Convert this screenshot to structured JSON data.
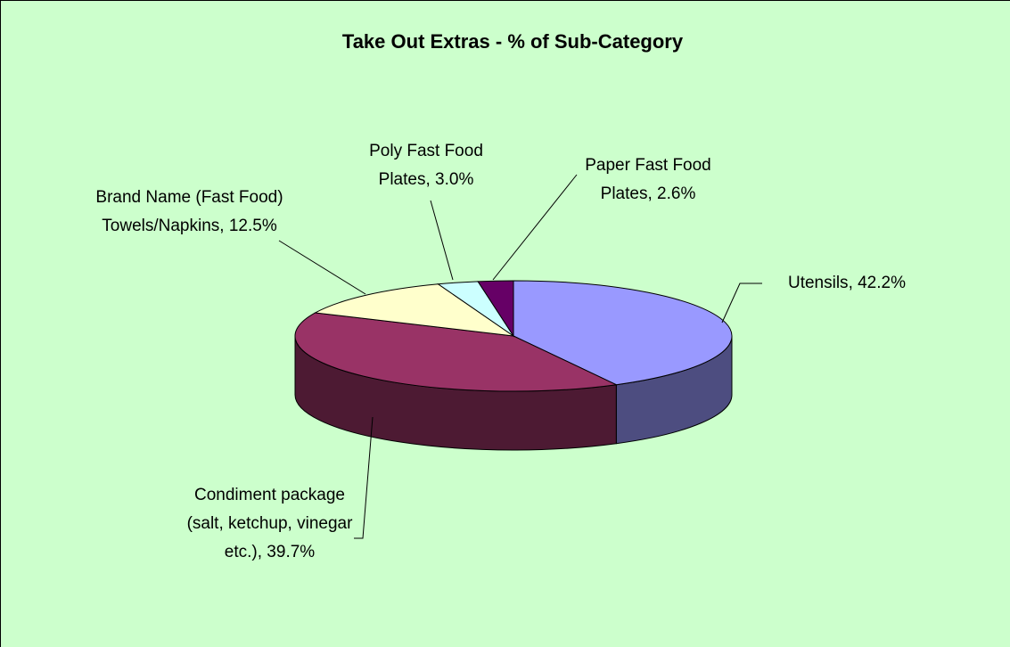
{
  "chart_data": {
    "type": "pie3d",
    "title": "Take Out Extras - % of Sub-Category",
    "categories": [
      "Utensils",
      "Condiment package (salt, ketchup, vinegar etc.)",
      "Brand Name  (Fast Food) Towels/Napkins",
      "Poly Fast Food Plates",
      "Paper Fast Food Plates"
    ],
    "values": [
      42.2,
      39.7,
      12.5,
      3.0,
      2.6
    ],
    "value_labels": [
      ", 42.2%",
      ", 39.7%",
      ", 12.5%",
      ", 3.0%",
      ", 2.6%"
    ],
    "colors": [
      "#9999ff",
      "#993366",
      "#ffffcc",
      "#ccffff",
      "#660066"
    ],
    "side_colors": [
      "#4d4d80",
      "#4d1a33",
      "#80806a",
      "#6a8080",
      "#330033"
    ]
  }
}
